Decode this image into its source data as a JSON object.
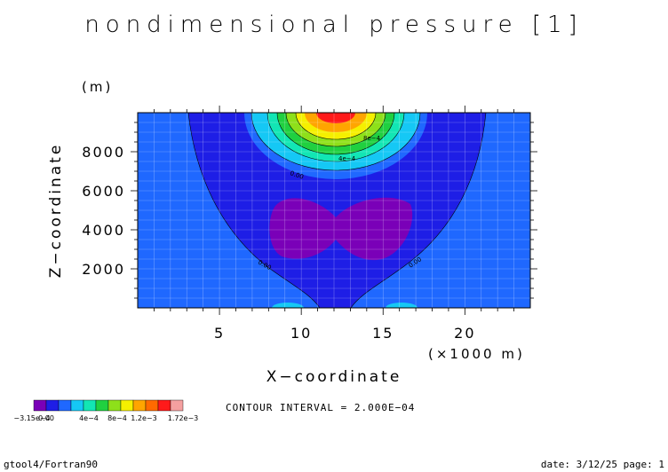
{
  "chart_data": {
    "type": "heatmap",
    "title": "nondimensional pressure [1]",
    "xlabel": "X−coordinate",
    "x_unit": "(×1000 m)",
    "ylabel": "Z−coordinate",
    "y_unit": "(m)",
    "xlim": [
      0,
      24
    ],
    "ylim": [
      0,
      10000
    ],
    "x_ticks": [
      5,
      10,
      15,
      20
    ],
    "y_ticks": [
      2000,
      4000,
      6000,
      8000
    ],
    "grid": true,
    "colorbar": {
      "colors": [
        "#7a00b8",
        "#1e1ee6",
        "#1f68ff",
        "#15c8f5",
        "#12e6b4",
        "#20d040",
        "#8ee01a",
        "#f5f000",
        "#ffa500",
        "#ff6a00",
        "#ff1a1a",
        "#f5a0a0"
      ],
      "labels": [
        "−3.15e−4",
        "0.00",
        "4e−4",
        "8e−4",
        "1.2e−3",
        "1.72e−3"
      ]
    },
    "contour_labels": [
      "8e−4",
      "4e−4",
      "0.00",
      "0.00",
      "0.00"
    ],
    "contour_interval_text": "CONTOUR INTERVAL = 2.000E−04"
  },
  "footer": {
    "left": "gtool4/Fortran90",
    "right": "date: 3/12/25 page: 1"
  }
}
